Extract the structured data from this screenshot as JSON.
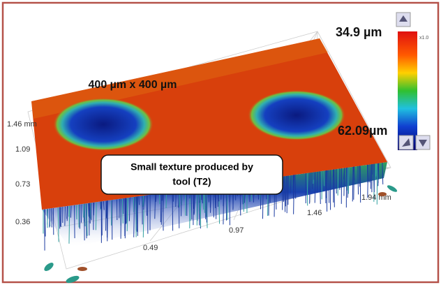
{
  "view": {
    "area_label": "400 µm x 400 µm",
    "colorbar": {
      "top_label": "34.9 µm",
      "bottom_label": "62.09µm",
      "scale_label": "x1.0"
    },
    "axis_labels": {
      "y": [
        "1.46 mm",
        "1.09",
        "0.73",
        "0.36"
      ],
      "x": [
        "0.49",
        "0.97",
        "1.46",
        "1.94 mm"
      ]
    },
    "callout": [
      "Small texture produced by",
      "tool (T2)"
    ]
  }
}
